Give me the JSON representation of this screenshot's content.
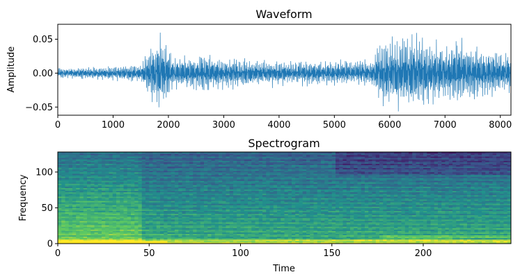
{
  "chart_data": [
    {
      "type": "line",
      "title": "Waveform",
      "xlabel": "",
      "ylabel": "Amplitude",
      "xlim": [
        0,
        8192
      ],
      "ylim": [
        -0.062,
        0.072
      ],
      "xticks": [
        0,
        1000,
        2000,
        3000,
        4000,
        5000,
        6000,
        7000,
        8000
      ],
      "xtick_labels": [
        "0",
        "1000",
        "2000",
        "3000",
        "4000",
        "5000",
        "6000",
        "7000",
        "8000"
      ],
      "yticks": [
        -0.05,
        0.0,
        0.05
      ],
      "ytick_labels": [
        "−0.05",
        "0.00",
        "0.05"
      ],
      "line_color": "#1f77b4",
      "envelope": [
        {
          "x": 0,
          "amp": 0.008
        },
        {
          "x": 1000,
          "amp": 0.012
        },
        {
          "x": 1500,
          "amp": 0.015
        },
        {
          "x": 1650,
          "amp": 0.04
        },
        {
          "x": 1750,
          "amp": 0.055
        },
        {
          "x": 1900,
          "amp": 0.058
        },
        {
          "x": 2100,
          "amp": 0.025
        },
        {
          "x": 2700,
          "amp": 0.032
        },
        {
          "x": 3000,
          "amp": 0.025
        },
        {
          "x": 4000,
          "amp": 0.02
        },
        {
          "x": 5000,
          "amp": 0.02
        },
        {
          "x": 5700,
          "amp": 0.022
        },
        {
          "x": 5800,
          "amp": 0.05
        },
        {
          "x": 6300,
          "amp": 0.066
        },
        {
          "x": 7000,
          "amp": 0.045
        },
        {
          "x": 7300,
          "amp": 0.055
        },
        {
          "x": 8192,
          "amp": 0.03
        }
      ]
    },
    {
      "type": "heatmap",
      "title": "Spectrogram",
      "xlabel": "Time",
      "ylabel": "Frequency",
      "xlim": [
        0,
        248
      ],
      "ylim": [
        0,
        128
      ],
      "xticks": [
        0,
        50,
        100,
        150,
        200
      ],
      "xtick_labels": [
        "0",
        "50",
        "100",
        "150",
        "200"
      ],
      "yticks": [
        0,
        50,
        100
      ],
      "ytick_labels": [
        "0",
        "50",
        "100"
      ],
      "colormap": [
        "#440154",
        "#3b528b",
        "#21918c",
        "#5ec962",
        "#fde725"
      ]
    }
  ]
}
